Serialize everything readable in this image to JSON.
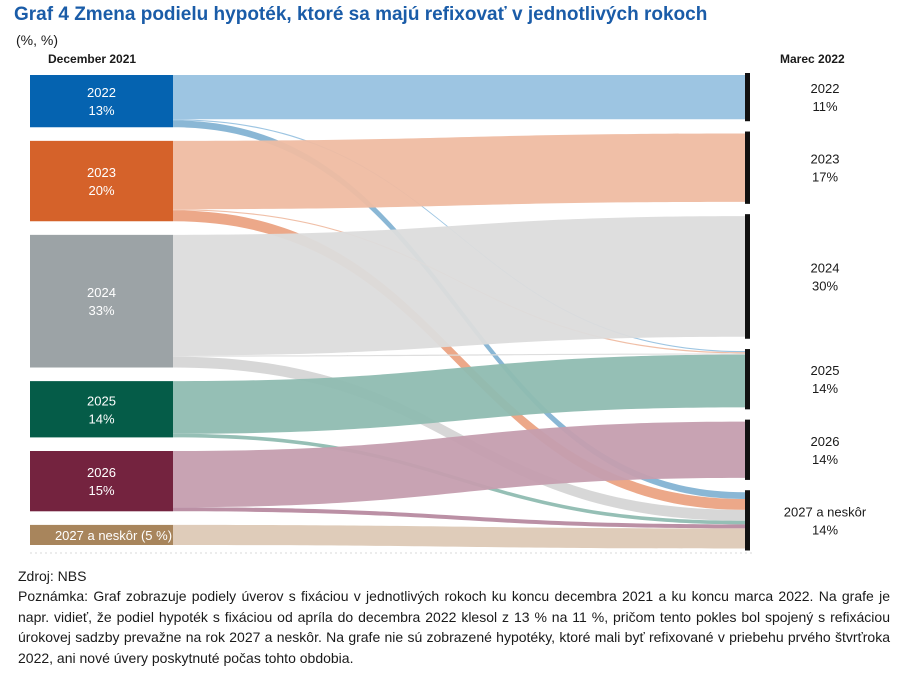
{
  "header": {
    "title": "Graf 4 Zmena podielu hypoték, ktoré sa majú refixovať v jednotlivých rokoch",
    "units": "(%, %)",
    "left_label": "December 2021",
    "right_label": "Marec 2022"
  },
  "chart_data": {
    "type": "sankey",
    "unit": "%",
    "source_nodes": [
      {
        "label": "2022",
        "value_label": "13%",
        "value": 13,
        "color": "#0563b0"
      },
      {
        "label": "2023",
        "value_label": "20%",
        "value": 20,
        "color": "#d5622a"
      },
      {
        "label": "2024",
        "value_label": "33%",
        "value": 33,
        "color": "#9ca3a6"
      },
      {
        "label": "2025",
        "value_label": "14%",
        "value": 14,
        "color": "#055c48"
      },
      {
        "label": "2026",
        "value_label": "15%",
        "value": 15,
        "color": "#74233f"
      },
      {
        "label": "2027 a neskôr (5 %)",
        "value_label": "",
        "value": 5,
        "color": "#a8855c"
      }
    ],
    "target_nodes": [
      {
        "label": "2022",
        "value_label": "11%",
        "value": 11
      },
      {
        "label": "2023",
        "value_label": "17%",
        "value": 17
      },
      {
        "label": "2024",
        "value_label": "30%",
        "value": 30
      },
      {
        "label": "2025",
        "value_label": "14%",
        "value": 14
      },
      {
        "label": "2026",
        "value_label": "14%",
        "value": 14
      },
      {
        "label": "2027 a neskôr",
        "value_label": "14%",
        "value": 14
      }
    ],
    "flows": [
      {
        "from": "2022",
        "to": "2022",
        "value": 11,
        "color": "#98c2e0"
      },
      {
        "from": "2022",
        "to": "2025",
        "value": 0.3,
        "color": "#98c2e0"
      },
      {
        "from": "2022",
        "to": "2027 a neskôr",
        "value": 1.7,
        "color": "#84b3d3"
      },
      {
        "from": "2023",
        "to": "2023",
        "value": 17,
        "color": "#efbca2"
      },
      {
        "from": "2023",
        "to": "2025",
        "value": 0.3,
        "color": "#efbca2"
      },
      {
        "from": "2023",
        "to": "2027 a neskôr",
        "value": 2.7,
        "color": "#eba383"
      },
      {
        "from": "2024",
        "to": "2024",
        "value": 30,
        "color": "#dcdcdc"
      },
      {
        "from": "2024",
        "to": "2025",
        "value": 0.3,
        "color": "#dcdcdc"
      },
      {
        "from": "2024",
        "to": "2027 a neskôr",
        "value": 2.7,
        "color": "#d5d5d5"
      },
      {
        "from": "2025",
        "to": "2025",
        "value": 13.1,
        "color": "#8fbcb1"
      },
      {
        "from": "2025",
        "to": "2027 a neskôr",
        "value": 0.9,
        "color": "#8fbcb1"
      },
      {
        "from": "2026",
        "to": "2026",
        "value": 14,
        "color": "#c59eaf"
      },
      {
        "from": "2026",
        "to": "2027 a neskôr",
        "value": 1,
        "color": "#b78aa0"
      },
      {
        "from": "2027 a neskôr (5 %)",
        "to": "2027 a neskôr",
        "value": 5,
        "color": "#ddc9b6"
      }
    ]
  },
  "footer": {
    "source": "Zdroj: NBS",
    "note": "Poznámka: Graf zobrazuje podiely úverov s fixáciou v jednotlivých rokoch ku koncu decembra 2021 a ku koncu marca 2022. Na grafe je napr. vidieť, že podiel hypoték s fixáciou od apríla do decembra 2022 klesol z 13 % na 11 %, pričom tento pokles bol spojený s refixáciou úrokovej sadzby prevažne na rok 2027 a neskôr. Na grafe nie sú zobrazené hypotéky, ktoré mali byť refixované v priebehu prvého štvrťroka 2022, ani nové úvery poskytnuté počas tohto obdobia."
  }
}
